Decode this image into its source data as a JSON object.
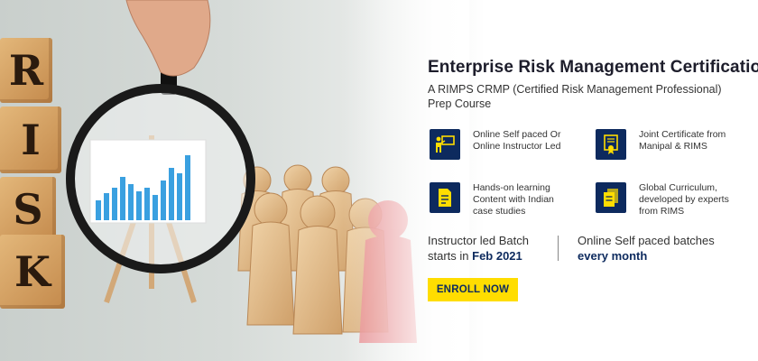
{
  "blocks": [
    "R",
    "I",
    "S",
    "K"
  ],
  "course": {
    "title": "Enterprise Risk Management Certification",
    "subtitle_line1": "A RIMPS CRMP (Certified Risk Management Professional)",
    "subtitle_line2": "Prep Course"
  },
  "features": [
    {
      "icon": "presenter-board-icon",
      "lines": [
        "Online Self paced Or",
        "Online Instructor Led"
      ]
    },
    {
      "icon": "certificate-icon",
      "lines": [
        "Joint Certificate from",
        "Manipal & RIMS"
      ]
    },
    {
      "icon": "document-icon",
      "lines": [
        "Hands-on learning",
        "Content with Indian",
        "case studies"
      ]
    },
    {
      "icon": "documents-icon",
      "lines": [
        "Global Curriculum,",
        "developed by experts",
        "from RIMS"
      ]
    }
  ],
  "batches": {
    "instructor_line1": "Instructor led Batch",
    "instructor_prefix": "starts in ",
    "instructor_date": "Feb 2021",
    "self_paced_line1": "Online Self paced batches",
    "self_paced_line2": "every month"
  },
  "enroll_label": "ENROLL NOW",
  "colors": {
    "navy": "#0d2a5e",
    "button": "#ffdd00"
  }
}
